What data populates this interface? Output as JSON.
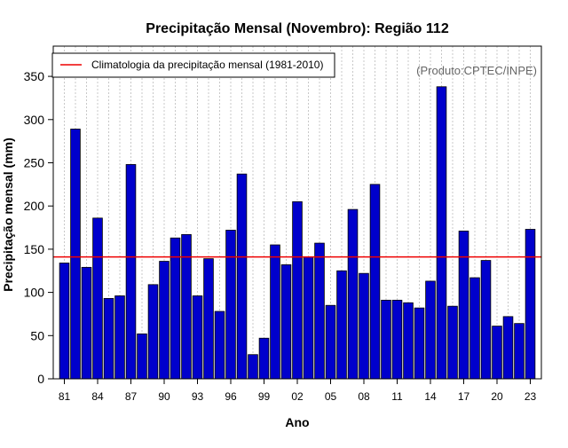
{
  "chart_data": {
    "type": "bar",
    "title": "Precipitação Mensal (Novembro): Região 112",
    "xlabel": "Ano",
    "ylabel": "Precipitação mensal (mm)",
    "watermark": "(Produto:CPTEC/INPE)",
    "legend": {
      "label": "Climatologia da precipitação mensal (1981-2010)",
      "position": "top-left"
    },
    "climatology": 141,
    "ylim": [
      0,
      385
    ],
    "yticks": [
      0,
      50,
      100,
      150,
      200,
      250,
      300,
      350
    ],
    "categories": [
      "81",
      "82",
      "83",
      "84",
      "85",
      "86",
      "87",
      "88",
      "89",
      "90",
      "91",
      "92",
      "93",
      "94",
      "95",
      "96",
      "97",
      "98",
      "99",
      "00",
      "01",
      "02",
      "03",
      "04",
      "05",
      "06",
      "07",
      "08",
      "09",
      "10",
      "11",
      "12",
      "13",
      "14",
      "15",
      "16",
      "17",
      "18",
      "19",
      "20",
      "21",
      "22",
      "23"
    ],
    "xtick_labels": [
      "81",
      "84",
      "87",
      "90",
      "93",
      "96",
      "99",
      "02",
      "05",
      "08",
      "11",
      "14",
      "17",
      "20",
      "23"
    ],
    "values": [
      134,
      289,
      129,
      186,
      93,
      96,
      248,
      52,
      109,
      136,
      163,
      167,
      96,
      139,
      78,
      172,
      237,
      28,
      47,
      155,
      132,
      205,
      141,
      157,
      85,
      125,
      196,
      122,
      225,
      91,
      91,
      88,
      82,
      113,
      338,
      84,
      171,
      117,
      137,
      61,
      72,
      64,
      173
    ],
    "colors": {
      "bar": "#0000cc",
      "bar_edge": "#000000",
      "climatology_line": "#ee0000",
      "grid": "#c8c8c8",
      "watermark": "#666666"
    }
  }
}
